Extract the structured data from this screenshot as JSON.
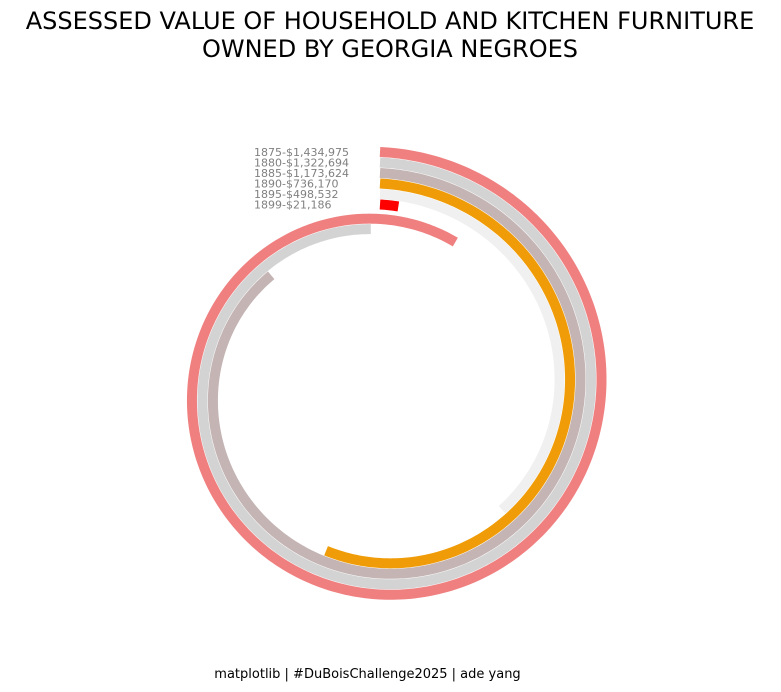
{
  "chart_data": {
    "type": "spiral",
    "title": [
      "ASSESSED VALUE OF HOUSEHOLD AND KITCHEN FURNITURE",
      "OWNED BY GEORGIA NEGROES"
    ],
    "series": [
      {
        "name": "1875-$1,434,975",
        "year": 1875,
        "value": 1434975,
        "color": "#f08080"
      },
      {
        "name": "1880-$1,322,694",
        "year": 1880,
        "value": 1322694,
        "color": "#d3d3d3"
      },
      {
        "name": "1885-$1,173,624",
        "year": 1885,
        "value": 1173624,
        "color": "#c4b4b4"
      },
      {
        "name": "1890-$736,170",
        "year": 1890,
        "value": 736170,
        "color": "#f09c08"
      },
      {
        "name": "1895-$498,532",
        "year": 1895,
        "value": 498532,
        "color": "#f0f0f0"
      },
      {
        "name": "1899-$21,186",
        "year": 1899,
        "value": 21186,
        "color": "#ff0000"
      }
    ]
  },
  "credit": "matplotlib | #DuBoisChallenge2025 | ade yang"
}
